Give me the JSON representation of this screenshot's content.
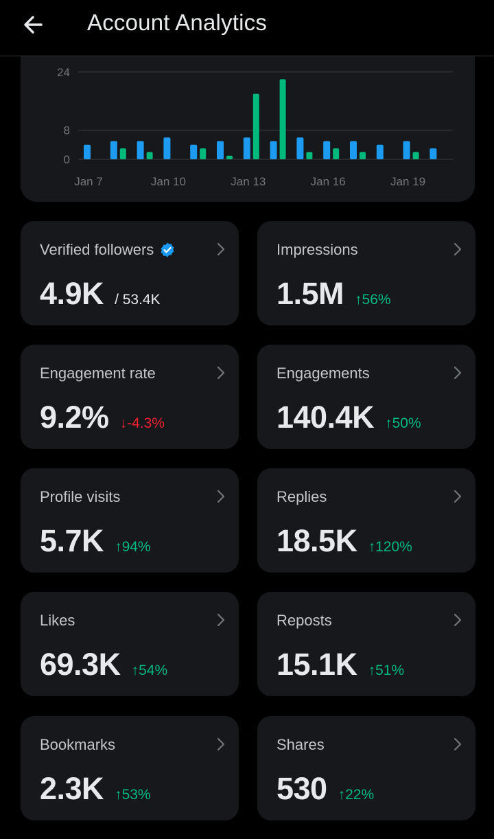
{
  "header": {
    "title": "Account Analytics",
    "back_icon": "arrow-left-icon"
  },
  "colors": {
    "blue": "#1d9bf0",
    "green": "#00ba7c",
    "red": "#f4212e",
    "card": "#16181c"
  },
  "chart_data": {
    "type": "bar",
    "yticks": [
      0,
      8,
      24
    ],
    "ylim": [
      0,
      24
    ],
    "xtick_labels": [
      "Jan 7",
      "Jan 10",
      "Jan 13",
      "Jan 16",
      "Jan 19"
    ],
    "x": [
      "Jan 7",
      "Jan 8",
      "Jan 9",
      "Jan 10",
      "Jan 11",
      "Jan 12",
      "Jan 13",
      "Jan 14",
      "Jan 15",
      "Jan 16",
      "Jan 17",
      "Jan 18",
      "Jan 19",
      "Jan 20"
    ],
    "series": [
      {
        "color": "#1d9bf0",
        "values": [
          4,
          5,
          5,
          6,
          4,
          5,
          6,
          5,
          6,
          5,
          5,
          4,
          5,
          3
        ]
      },
      {
        "color": "#00ba7c",
        "values": [
          0,
          3,
          2,
          0,
          3,
          1,
          18,
          22,
          2,
          3,
          2,
          0,
          2,
          0
        ]
      }
    ]
  },
  "metrics": [
    {
      "label": "Verified followers",
      "value": "4.9K",
      "total": "/ 53.4K",
      "verified": true
    },
    {
      "label": "Impressions",
      "value": "1.5M",
      "change": "↑56%",
      "dir": "up"
    },
    {
      "label": "Engagement rate",
      "value": "9.2%",
      "change": "↓-4.3%",
      "dir": "down"
    },
    {
      "label": "Engagements",
      "value": "140.4K",
      "change": "↑50%",
      "dir": "up"
    },
    {
      "label": "Profile visits",
      "value": "5.7K",
      "change": "↑94%",
      "dir": "up"
    },
    {
      "label": "Replies",
      "value": "18.5K",
      "change": "↑120%",
      "dir": "up"
    },
    {
      "label": "Likes",
      "value": "69.3K",
      "change": "↑54%",
      "dir": "up"
    },
    {
      "label": "Reposts",
      "value": "15.1K",
      "change": "↑51%",
      "dir": "up"
    },
    {
      "label": "Bookmarks",
      "value": "2.3K",
      "change": "↑53%",
      "dir": "up"
    },
    {
      "label": "Shares",
      "value": "530",
      "change": "↑22%",
      "dir": "up"
    }
  ]
}
